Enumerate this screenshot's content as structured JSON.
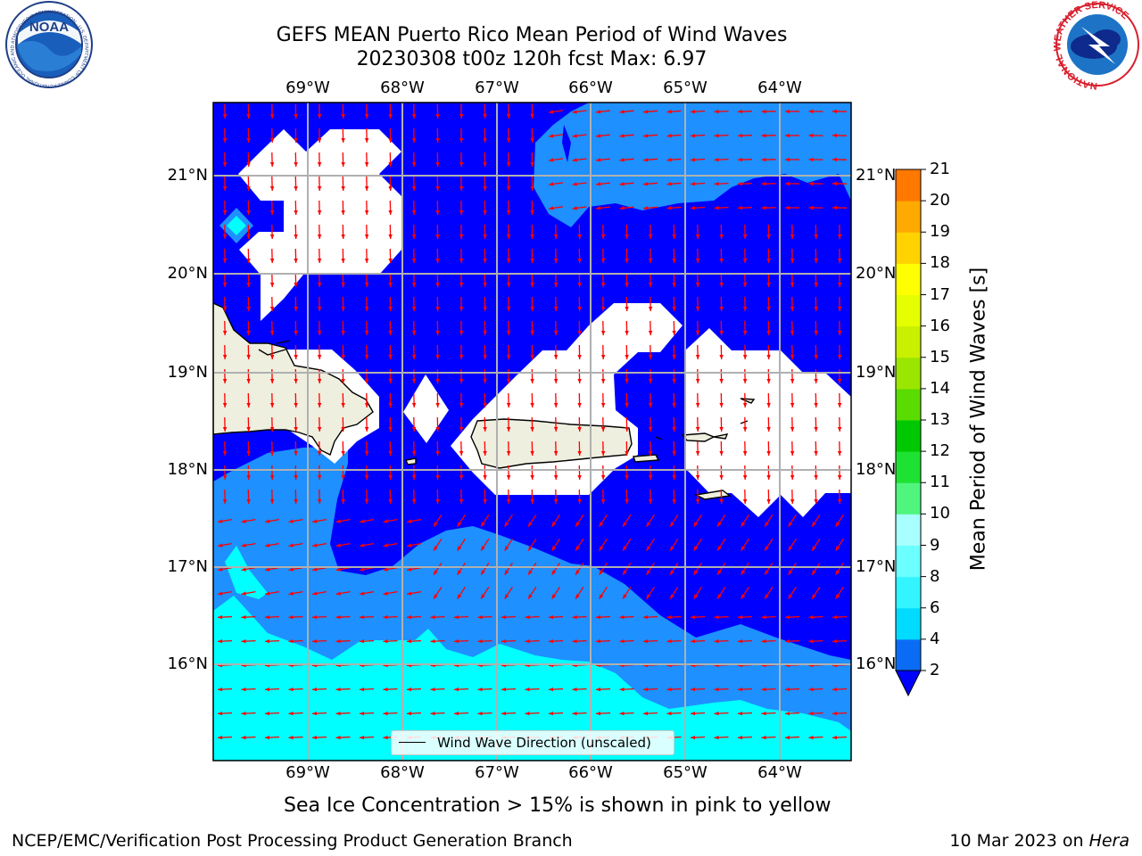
{
  "title_line1": "GEFS MEAN Puerto Rico Mean Period of Wind Waves",
  "title_line2": "20230308 t00z 120h fcst   Max: 6.97",
  "lon_labels": [
    "69°W",
    "68°W",
    "67°W",
    "66°W",
    "65°W",
    "64°W"
  ],
  "lat_labels": [
    "21°N",
    "20°N",
    "19°N",
    "18°N",
    "17°N",
    "16°N"
  ],
  "legend": {
    "label": "Wind Wave Direction (unscaled)"
  },
  "colorbar": {
    "label": "Mean Period of Wind Waves [s]",
    "ticks": [
      "2",
      "4",
      "6",
      "8",
      "9",
      "10",
      "11",
      "12",
      "13",
      "14",
      "15",
      "16",
      "17",
      "18",
      "19",
      "20",
      "21"
    ],
    "colors": [
      "#0a6cf5",
      "#00dbff",
      "#32f5ff",
      "#6bffff",
      "#a8ffff",
      "#50f57e",
      "#1ee232",
      "#00c800",
      "#5adc00",
      "#9be600",
      "#c8f000",
      "#e6ff00",
      "#ffff00",
      "#ffd200",
      "#ffaa00",
      "#ff7800",
      "#ff4b00",
      "#ff1e00"
    ],
    "extend_color": "#0000ff"
  },
  "map_colors": {
    "deep_blue": "#0000ff",
    "mid_blue": "#1e90ff",
    "cyan": "#00ffff",
    "land": "#efefdf",
    "arrow": "#ff0000"
  },
  "note": "Sea Ice Concentration > 15% is shown in pink to yellow",
  "footer_left": "NCEP/EMC/Verification Post Processing Product Generation Branch",
  "footer_right_prefix": "10 Mar 2023 on ",
  "footer_right_host": "Hera",
  "logos": {
    "noaa_text": "NOAA",
    "noaa_ring_text": "NATIONAL OCEANIC AND ATMOSPHERIC ADMINISTRATION · U.S. DEPARTMENT OF COMMERCE",
    "nws_ring_text": "NATIONAL WEATHER SERVICE"
  }
}
